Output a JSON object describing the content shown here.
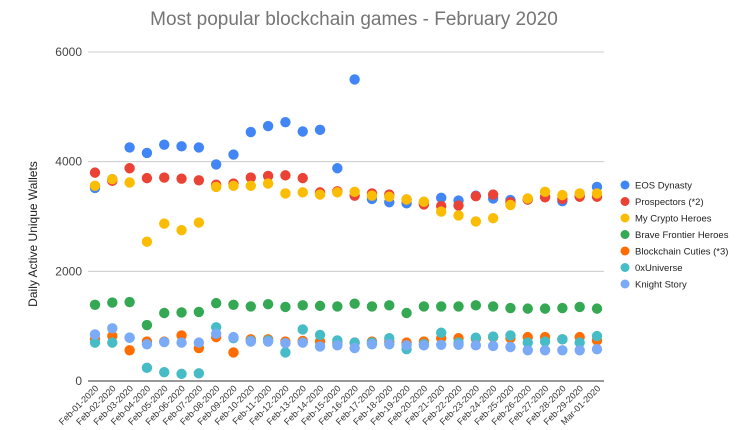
{
  "chart_data": {
    "type": "scatter",
    "title": "Most popular blockchain games - February 2020",
    "xlabel": "",
    "ylabel": "Daily Active Unique Wallets",
    "ylim": [
      0,
      6000
    ],
    "yticks": [
      "0",
      "2000",
      "4000",
      "6000"
    ],
    "grid": "horizontal",
    "legend_position": "right",
    "categories": [
      "Feb-01-2020",
      "Feb-02-2020",
      "Feb-03-2020",
      "Feb-04-2020",
      "Feb-05-2020",
      "Feb-06-2020",
      "Feb-07-2020",
      "Feb-08-2020",
      "Feb-09-2020",
      "Feb-10-2020",
      "Feb-11-2020",
      "Feb-12-2020",
      "Feb-13-2020",
      "Feb-14-2020",
      "Feb-15-2020",
      "Feb-16-2020",
      "Feb-17-2020",
      "Feb-18-2020",
      "Feb-19-2020",
      "Feb-20-2020",
      "Feb-21-2020",
      "Feb-22-2020",
      "Feb-23-2020",
      "Feb-24-2020",
      "Feb-25-2020",
      "Feb-26-2020",
      "Feb-27-2020",
      "Feb-28-2020",
      "Feb-29-2020",
      "Mar-01-2020"
    ],
    "series": [
      {
        "name": "EOS Dynasty",
        "color": "#4285f4",
        "values": [
          3520,
          3680,
          4260,
          4160,
          4310,
          4280,
          4260,
          3950,
          4130,
          4540,
          4650,
          4720,
          4550,
          4580,
          3880,
          5500,
          3320,
          3260,
          3240,
          3250,
          3340,
          3290,
          3380,
          3330,
          3300,
          3310,
          3360,
          3280,
          3380,
          3540
        ]
      },
      {
        "name": "Prospectors (*2)",
        "color": "#ea4335",
        "values": [
          3800,
          3650,
          3880,
          3700,
          3710,
          3690,
          3660,
          3580,
          3600,
          3710,
          3740,
          3750,
          3700,
          3440,
          3460,
          3380,
          3420,
          3400,
          3310,
          3220,
          3190,
          3200,
          3370,
          3400,
          3260,
          3310,
          3350,
          3320,
          3360,
          3360
        ]
      },
      {
        "name": "My Crypto Heroes",
        "color": "#fbbc04",
        "values": [
          3560,
          3680,
          3620,
          2540,
          2870,
          2750,
          2890,
          3540,
          3560,
          3560,
          3600,
          3420,
          3440,
          3400,
          3440,
          3450,
          3380,
          3360,
          3310,
          3270,
          3090,
          3020,
          2910,
          2970,
          3210,
          3330,
          3450,
          3390,
          3420,
          3420
        ]
      },
      {
        "name": "Brave Frontier Heroes",
        "color": "#34a853",
        "values": [
          1390,
          1430,
          1440,
          1020,
          1240,
          1250,
          1260,
          1420,
          1390,
          1360,
          1400,
          1350,
          1380,
          1370,
          1360,
          1410,
          1360,
          1380,
          1240,
          1360,
          1360,
          1360,
          1380,
          1360,
          1330,
          1320,
          1320,
          1330,
          1350,
          1320
        ]
      },
      {
        "name": "Blockchain Cuties (*3)",
        "color": "#ff6d01",
        "values": [
          760,
          820,
          560,
          720,
          720,
          830,
          600,
          800,
          520,
          760,
          760,
          720,
          730,
          720,
          700,
          700,
          720,
          720,
          700,
          720,
          780,
          780,
          770,
          800,
          780,
          800,
          800,
          760,
          800,
          740
        ]
      },
      {
        "name": "0xUniverse",
        "color": "#46bdc6",
        "values": [
          700,
          700,
          790,
          240,
          160,
          130,
          140,
          980,
          780,
          730,
          740,
          520,
          940,
          840,
          740,
          700,
          700,
          780,
          580,
          670,
          880,
          700,
          790,
          810,
          830,
          700,
          720,
          760,
          700,
          820
        ]
      },
      {
        "name": "Knight Story",
        "color": "#7baaf7",
        "values": [
          850,
          960,
          790,
          670,
          710,
          700,
          700,
          860,
          800,
          720,
          720,
          690,
          700,
          630,
          650,
          600,
          670,
          670,
          650,
          650,
          660,
          660,
          650,
          640,
          620,
          560,
          560,
          560,
          560,
          580
        ]
      }
    ]
  }
}
